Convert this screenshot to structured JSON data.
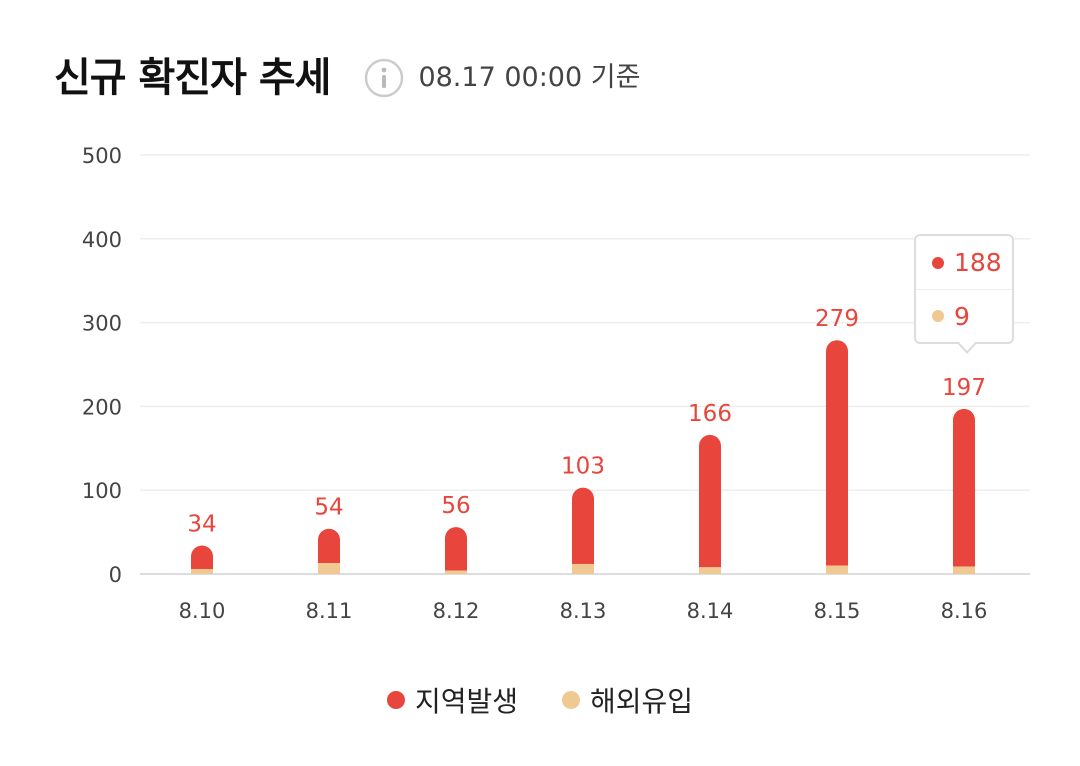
{
  "header": {
    "title": "신규 확진자 추세",
    "basis_time": "08.17 00:00 기준",
    "info_icon": "info-circle-icon"
  },
  "colors": {
    "local": "#e8453c",
    "overseas": "#f0c992",
    "grid": "#eeeeee",
    "axis": "#dddddd"
  },
  "chart_data": {
    "type": "bar",
    "stacked": true,
    "categories": [
      "8.10",
      "8.11",
      "8.12",
      "8.13",
      "8.14",
      "8.15",
      "8.16"
    ],
    "series": [
      {
        "name": "해외유입",
        "values": [
          6,
          13,
          4,
          12,
          8,
          10,
          9
        ]
      },
      {
        "name": "지역발생",
        "values": [
          28,
          41,
          52,
          91,
          158,
          269,
          188
        ]
      }
    ],
    "totals": [
      "34",
      "54",
      "56",
      "103",
      "166",
      "279",
      "197"
    ],
    "y_ticks": [
      "0",
      "100",
      "200",
      "300",
      "400",
      "500"
    ],
    "ylim": [
      0,
      500
    ],
    "grid": true,
    "legend_position": "bottom-center"
  },
  "tooltip": {
    "local_value": "188",
    "overseas_value": "9"
  },
  "legend": {
    "local_label": "지역발생",
    "overseas_label": "해외유입"
  }
}
